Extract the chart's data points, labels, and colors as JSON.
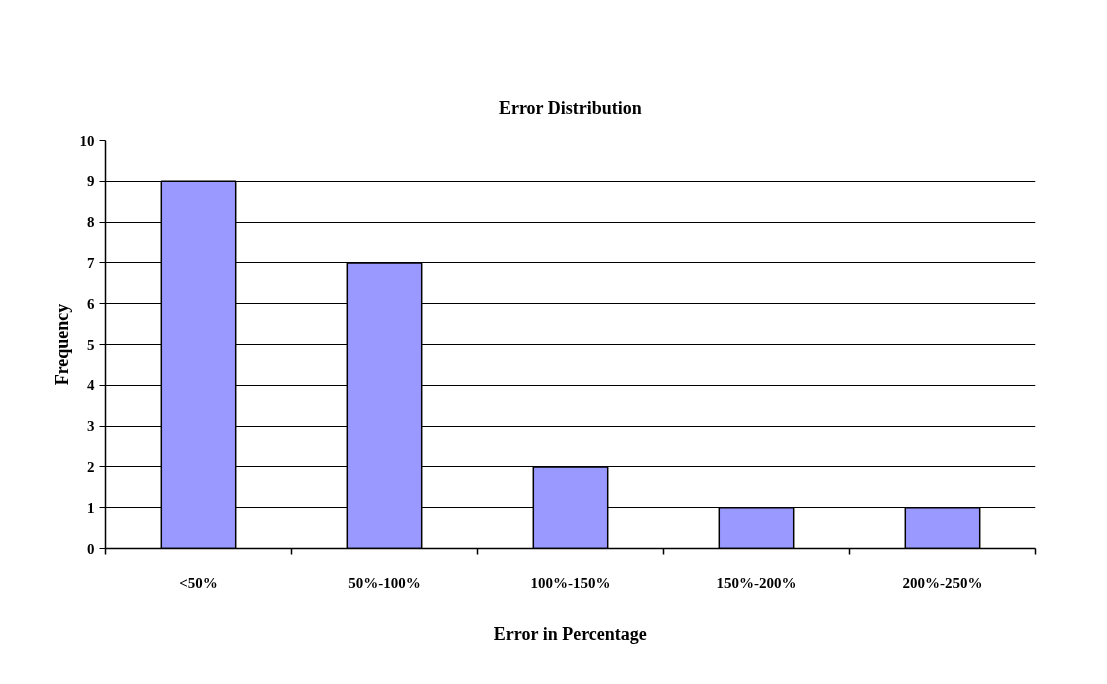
{
  "chart_data": {
    "type": "bar",
    "title": "Error Distribution",
    "xlabel": "Error in Percentage",
    "ylabel": "Frequency",
    "categories": [
      "<50%",
      "50%-100%",
      "100%-150%",
      "150%-200%",
      "200%-250%"
    ],
    "values": [
      9,
      7,
      2,
      1,
      1
    ],
    "color": "#9999ff",
    "ylim": [
      0,
      10
    ],
    "yticks": [
      0,
      1,
      2,
      3,
      4,
      5,
      6,
      7,
      8,
      9,
      10
    ],
    "grid": "y"
  }
}
